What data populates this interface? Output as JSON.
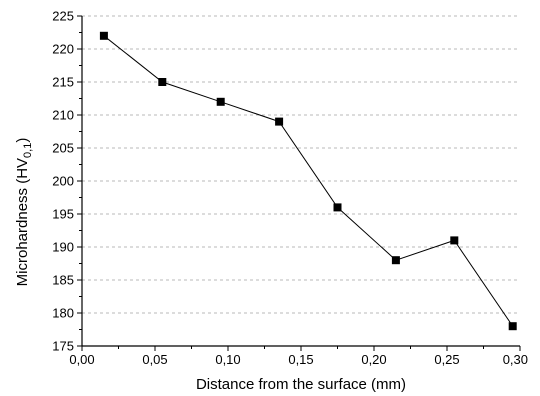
{
  "chart_data": {
    "type": "line",
    "title": "",
    "xlabel": "Distance from the surface (mm)",
    "ylabel_main": "Microhardness (HV",
    "ylabel_sub": "0,1",
    "ylabel_close": ")",
    "xlim": [
      0.0,
      0.3
    ],
    "ylim": [
      175,
      225
    ],
    "x_ticks": [
      0.0,
      0.05,
      0.1,
      0.15,
      0.2,
      0.25,
      0.3
    ],
    "x_tick_labels": [
      "0,00",
      "0,05",
      "0,10",
      "0,15",
      "0,20",
      "0,25",
      "0,30"
    ],
    "y_ticks": [
      175,
      180,
      185,
      190,
      195,
      200,
      205,
      210,
      215,
      220,
      225
    ],
    "y_tick_labels": [
      "175",
      "180",
      "185",
      "190",
      "195",
      "200",
      "205",
      "210",
      "215",
      "220",
      "225"
    ],
    "grid": "horizontal-dashed",
    "line_color": "#000000",
    "marker": "square",
    "series": [
      {
        "x": [
          0.015,
          0.055,
          0.095,
          0.135,
          0.175,
          0.215,
          0.255,
          0.295
        ],
        "y": [
          222,
          215,
          212,
          209,
          196,
          188,
          191,
          178
        ]
      }
    ]
  }
}
